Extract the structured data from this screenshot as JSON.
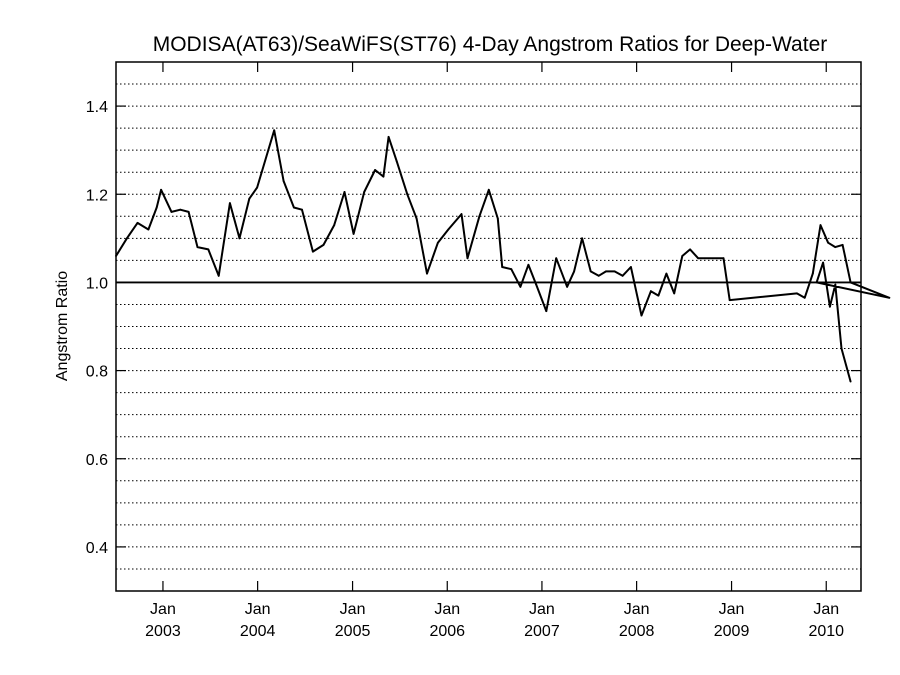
{
  "chart_data": {
    "type": "line",
    "title": "MODISA(AT63)/SeaWiFS(ST76) 4-Day Angstrom Ratios for Deep-Water",
    "xlabel": "",
    "ylabel": "Angstrom Ratio",
    "xlim": [
      "2002-07-04",
      "2010-05-15"
    ],
    "ylim": [
      0.3,
      1.5
    ],
    "yticks": [
      0.4,
      0.6,
      0.8,
      1.0,
      1.2,
      1.4
    ],
    "ytick_labels": [
      "0.4",
      "0.6",
      "0.8",
      "1.0",
      "1.2",
      "1.4"
    ],
    "grid": "horizontal dotted lines every 0.05",
    "reference_line": 1.0,
    "xticks": [
      {
        "date": "2003-01-01",
        "month": "Jan",
        "year": "2003"
      },
      {
        "date": "2004-01-01",
        "month": "Jan",
        "year": "2004"
      },
      {
        "date": "2005-01-01",
        "month": "Jan",
        "year": "2005"
      },
      {
        "date": "2006-01-01",
        "month": "Jan",
        "year": "2006"
      },
      {
        "date": "2007-01-01",
        "month": "Jan",
        "year": "2007"
      },
      {
        "date": "2008-01-01",
        "month": "Jan",
        "year": "2008"
      },
      {
        "date": "2009-01-01",
        "month": "Jan",
        "year": "2009"
      },
      {
        "date": "2010-01-01",
        "month": "Jan",
        "year": "2010"
      }
    ],
    "series": [
      {
        "points": [
          [
            "2002-07-04",
            1.06
          ],
          [
            "2002-08-15",
            1.1
          ],
          [
            "2002-09-25",
            1.135
          ],
          [
            "2002-11-06",
            1.12
          ],
          [
            "2002-12-08",
            1.17
          ],
          [
            "2002-12-25",
            1.21
          ],
          [
            "2003-02-03",
            1.16
          ],
          [
            "2003-03-09",
            1.165
          ],
          [
            "2003-04-10",
            1.16
          ],
          [
            "2003-05-14",
            1.08
          ],
          [
            "2003-06-25",
            1.075
          ],
          [
            "2003-08-04",
            1.015
          ],
          [
            "2003-09-16",
            1.18
          ],
          [
            "2003-10-23",
            1.1
          ],
          [
            "2003-11-30",
            1.19
          ],
          [
            "2003-12-30",
            1.215
          ],
          [
            "2004-03-05",
            1.345
          ],
          [
            "2004-04-10",
            1.23
          ],
          [
            "2004-05-20",
            1.17
          ],
          [
            "2004-06-20",
            1.165
          ],
          [
            "2004-08-01",
            1.07
          ],
          [
            "2004-09-11",
            1.085
          ],
          [
            "2004-10-22",
            1.13
          ],
          [
            "2004-12-01",
            1.205
          ],
          [
            "2005-01-05",
            1.11
          ],
          [
            "2005-02-15",
            1.205
          ],
          [
            "2005-03-29",
            1.255
          ],
          [
            "2005-04-30",
            1.24
          ],
          [
            "2005-05-20",
            1.33
          ],
          [
            "2005-06-20",
            1.275
          ],
          [
            "2005-07-31",
            1.2
          ],
          [
            "2005-09-05",
            1.145
          ],
          [
            "2005-10-15",
            1.02
          ],
          [
            "2005-11-26",
            1.09
          ],
          [
            "2006-01-05",
            1.12
          ],
          [
            "2006-02-25",
            1.155
          ],
          [
            "2006-03-20",
            1.055
          ],
          [
            "2006-05-05",
            1.15
          ],
          [
            "2006-06-10",
            1.21
          ],
          [
            "2006-07-15",
            1.145
          ],
          [
            "2006-08-01",
            1.035
          ],
          [
            "2006-09-05",
            1.03
          ],
          [
            "2006-10-10",
            0.99
          ],
          [
            "2006-11-10",
            1.04
          ],
          [
            "2006-12-10",
            0.995
          ],
          [
            "2007-01-18",
            0.935
          ],
          [
            "2007-02-25",
            1.055
          ],
          [
            "2007-04-08",
            0.99
          ],
          [
            "2007-05-05",
            1.025
          ],
          [
            "2007-06-05",
            1.1
          ],
          [
            "2007-07-08",
            1.025
          ],
          [
            "2007-08-08",
            1.015
          ],
          [
            "2007-09-05",
            1.025
          ],
          [
            "2007-10-08",
            1.025
          ],
          [
            "2007-11-08",
            1.015
          ],
          [
            "2007-12-10",
            1.035
          ],
          [
            "2008-01-20",
            0.925
          ],
          [
            "2008-02-25",
            0.98
          ],
          [
            "2008-03-25",
            0.97
          ],
          [
            "2008-04-25",
            1.02
          ],
          [
            "2008-05-25",
            0.975
          ],
          [
            "2008-06-25",
            1.06
          ],
          [
            "2008-07-25",
            1.075
          ],
          [
            "2008-08-25",
            1.055
          ],
          [
            "2008-12-01",
            1.055
          ],
          [
            "2008-12-25",
            0.96
          ],
          [
            "2009-09-10",
            0.975
          ],
          [
            "2009-10-10",
            0.965
          ],
          [
            "2009-11-10",
            1.02
          ],
          [
            "2009-12-10",
            1.13
          ],
          [
            "2010-01-08",
            1.09
          ],
          [
            "2010-02-05",
            1.08
          ],
          [
            "2010-03-05",
            1.085
          ],
          [
            "2010-04-05",
            1.0
          ],
          [
            "2010-09-01",
            0.965
          ],
          [
            "2009-11-25",
            1.0
          ],
          [
            "2009-12-20",
            1.045
          ],
          [
            "2010-01-15",
            0.945
          ],
          [
            "2010-02-05",
            0.995
          ],
          [
            "2010-03-01",
            0.85
          ],
          [
            "2010-04-05",
            0.775
          ]
        ]
      }
    ]
  }
}
